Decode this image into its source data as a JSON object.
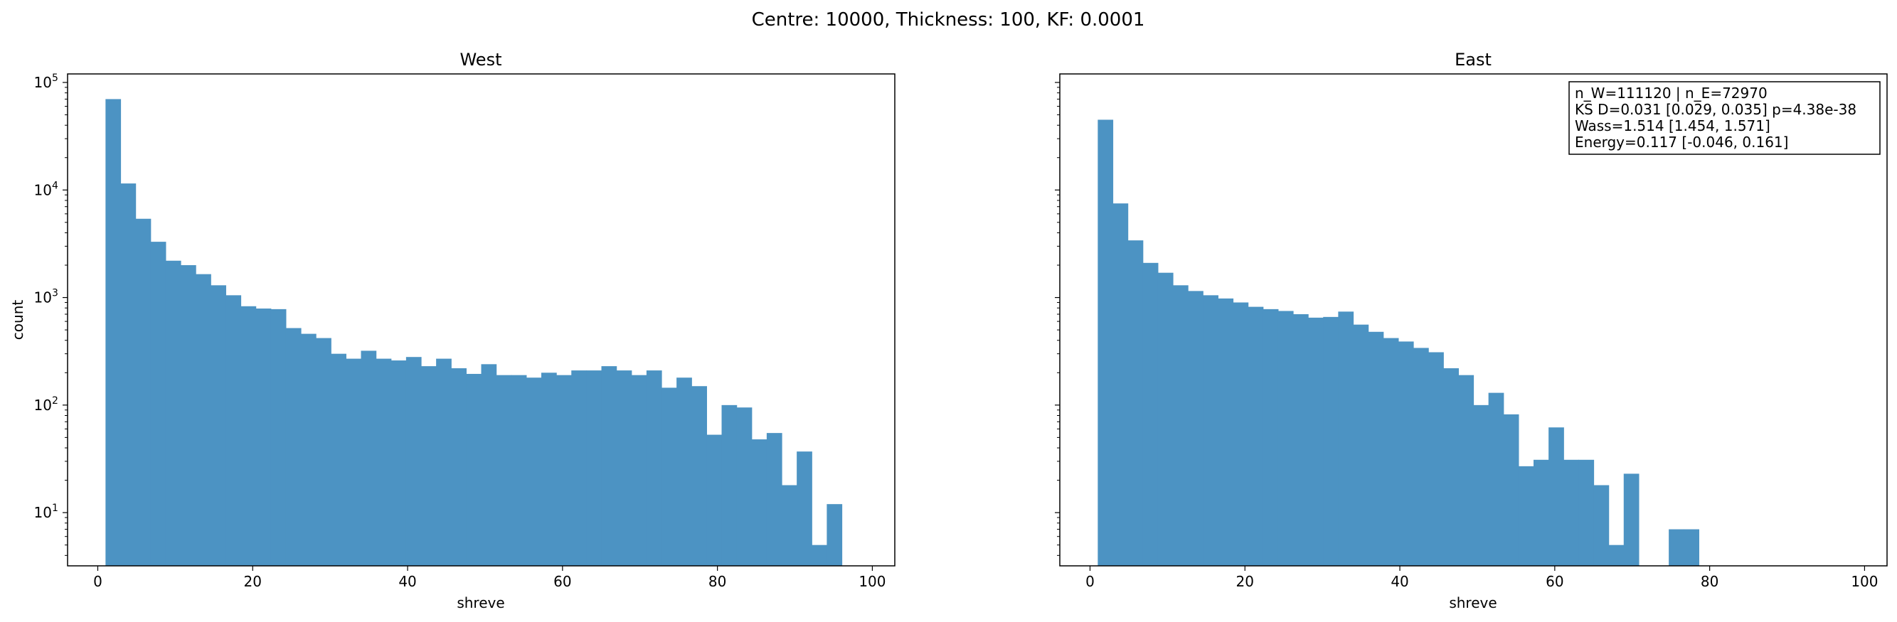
{
  "figure": {
    "title": "Centre: 10000, Thickness: 100, KF: 0.0001"
  },
  "chart_data": [
    {
      "type": "bar",
      "title": "West",
      "xlabel": "shreve",
      "ylabel": "count",
      "yscale": "log",
      "xlim": [
        -3.9,
        102.9
      ],
      "ylim": [
        3.2,
        120000
      ],
      "xticks": [
        "0",
        "20",
        "40",
        "60",
        "80",
        "100"
      ],
      "yticks": [
        {
          "base": "10",
          "exp": "1",
          "value": 10
        },
        {
          "base": "10",
          "exp": "2",
          "value": 100
        },
        {
          "base": "10",
          "exp": "3",
          "value": 1000
        },
        {
          "base": "10",
          "exp": "4",
          "value": 10000
        },
        {
          "base": "10",
          "exp": "5",
          "value": 100000
        }
      ],
      "bin_start": 1,
      "bin_width": 1.94,
      "color": "#4c93c3",
      "values": [
        70000,
        11500,
        5400,
        3300,
        2200,
        2000,
        1650,
        1300,
        1050,
        830,
        790,
        780,
        520,
        460,
        420,
        300,
        270,
        320,
        270,
        260,
        280,
        230,
        270,
        220,
        195,
        240,
        190,
        190,
        180,
        200,
        190,
        210,
        210,
        230,
        210,
        190,
        210,
        145,
        180,
        150,
        53,
        100,
        95,
        48,
        55,
        18,
        37,
        5,
        12
      ]
    },
    {
      "type": "bar",
      "title": "East",
      "xlabel": "shreve",
      "ylabel": "",
      "yscale": "log",
      "xlim": [
        -3.9,
        102.9
      ],
      "ylim": [
        3.2,
        120000
      ],
      "xticks": [
        "0",
        "20",
        "40",
        "60",
        "80",
        "100"
      ],
      "bin_start": 1,
      "bin_width": 1.94,
      "color": "#4c93c3",
      "values": [
        45000,
        7500,
        3400,
        2100,
        1700,
        1300,
        1150,
        1050,
        980,
        900,
        820,
        780,
        750,
        700,
        650,
        660,
        740,
        560,
        480,
        420,
        390,
        340,
        310,
        220,
        190,
        100,
        130,
        82,
        27,
        31,
        62,
        31,
        31,
        18,
        5,
        23,
        0,
        0,
        7,
        7,
        0,
        0,
        0,
        0,
        0,
        0,
        0,
        0,
        0,
        0
      ],
      "stats": {
        "lines": [
          "n_W=111120 | n_E=72970",
          "KS D=0.031 [0.029, 0.035]  p=4.38e-38",
          "Wass=1.514 [1.454, 1.571]",
          "Energy=0.117 [-0.046, 0.161]"
        ]
      }
    }
  ]
}
